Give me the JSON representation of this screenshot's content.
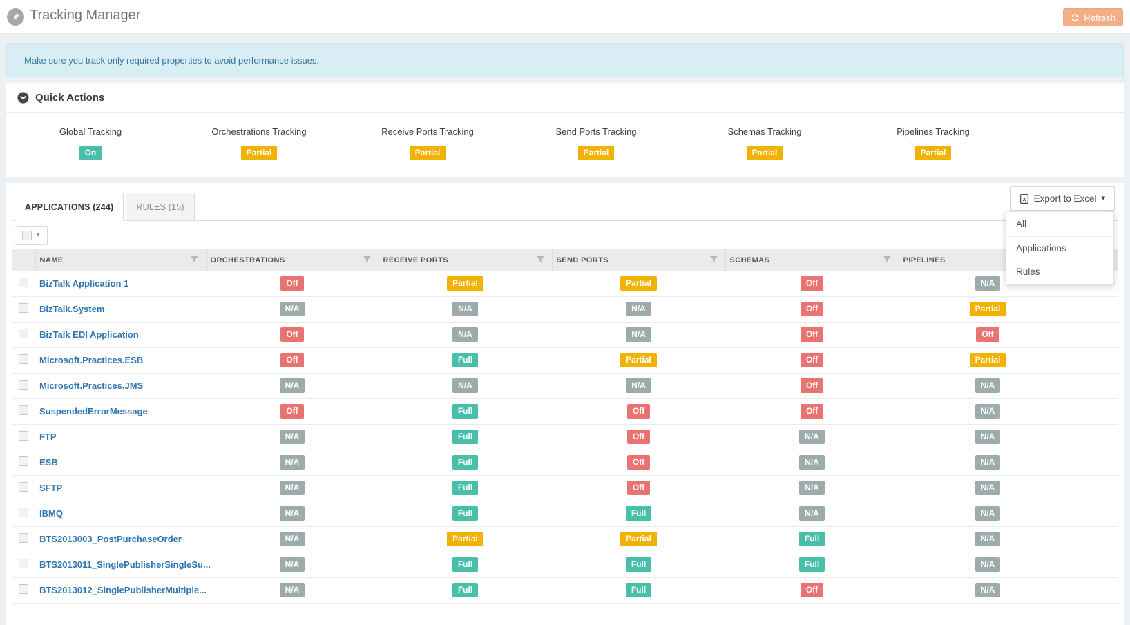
{
  "header": {
    "title": "Tracking Manager",
    "refresh_label": "Refresh"
  },
  "banner": {
    "message": "Make sure you track only required properties to avoid performance issues."
  },
  "quick_actions": {
    "title": "Quick Actions",
    "items": [
      {
        "label": "Global Tracking",
        "status": "On"
      },
      {
        "label": "Orchestrations Tracking",
        "status": "Partial"
      },
      {
        "label": "Receive Ports Tracking",
        "status": "Partial"
      },
      {
        "label": "Send Ports Tracking",
        "status": "Partial"
      },
      {
        "label": "Schemas Tracking",
        "status": "Partial"
      },
      {
        "label": "Pipelines Tracking",
        "status": "Partial"
      }
    ]
  },
  "tabs": [
    {
      "label": "APPLICATIONS (244)",
      "active": true
    },
    {
      "label": "RULES (15)",
      "active": false
    }
  ],
  "export": {
    "button_label": "Export to Excel",
    "menu_items": [
      "All",
      "Applications",
      "Rules"
    ]
  },
  "table": {
    "columns": [
      "NAME",
      "ORCHESTRATIONS",
      "RECEIVE PORTS",
      "SEND PORTS",
      "SCHEMAS",
      "PIPELINES"
    ],
    "rows": [
      {
        "name": "BizTalk Application 1",
        "orchestrations": "Off",
        "receive_ports": "Partial",
        "send_ports": "Partial",
        "schemas": "Off",
        "pipelines": "N/A"
      },
      {
        "name": "BizTalk.System",
        "orchestrations": "N/A",
        "receive_ports": "N/A",
        "send_ports": "N/A",
        "schemas": "Off",
        "pipelines": "Partial"
      },
      {
        "name": "BizTalk EDI Application",
        "orchestrations": "Off",
        "receive_ports": "N/A",
        "send_ports": "N/A",
        "schemas": "Off",
        "pipelines": "Off"
      },
      {
        "name": "Microsoft.Practices.ESB",
        "orchestrations": "Off",
        "receive_ports": "Full",
        "send_ports": "Partial",
        "schemas": "Off",
        "pipelines": "Partial"
      },
      {
        "name": "Microsoft.Practices.JMS",
        "orchestrations": "N/A",
        "receive_ports": "N/A",
        "send_ports": "N/A",
        "schemas": "Off",
        "pipelines": "N/A"
      },
      {
        "name": "SuspendedErrorMessage",
        "orchestrations": "Off",
        "receive_ports": "Full",
        "send_ports": "Off",
        "schemas": "Off",
        "pipelines": "N/A"
      },
      {
        "name": "FTP",
        "orchestrations": "N/A",
        "receive_ports": "Full",
        "send_ports": "Off",
        "schemas": "N/A",
        "pipelines": "N/A"
      },
      {
        "name": "ESB",
        "orchestrations": "N/A",
        "receive_ports": "Full",
        "send_ports": "Off",
        "schemas": "N/A",
        "pipelines": "N/A"
      },
      {
        "name": "SFTP",
        "orchestrations": "N/A",
        "receive_ports": "Full",
        "send_ports": "Off",
        "schemas": "N/A",
        "pipelines": "N/A"
      },
      {
        "name": "IBMQ",
        "orchestrations": "N/A",
        "receive_ports": "Full",
        "send_ports": "Full",
        "schemas": "N/A",
        "pipelines": "N/A"
      },
      {
        "name": "BTS2013003_PostPurchaseOrder",
        "orchestrations": "N/A",
        "receive_ports": "Partial",
        "send_ports": "Partial",
        "schemas": "Full",
        "pipelines": "N/A"
      },
      {
        "name": "BTS2013011_SinglePublisherSingleSu...",
        "orchestrations": "N/A",
        "receive_ports": "Full",
        "send_ports": "Full",
        "schemas": "Full",
        "pipelines": "N/A"
      },
      {
        "name": "BTS2013012_SinglePublisherMultiple...",
        "orchestrations": "N/A",
        "receive_ports": "Full",
        "send_ports": "Full",
        "schemas": "Off",
        "pipelines": "N/A"
      }
    ]
  },
  "status_colors": {
    "On": "#47bfa9",
    "Full": "#47bfa9",
    "Partial": "#f2b300",
    "Off": "#e87370",
    "N/A": "#9dabab"
  }
}
